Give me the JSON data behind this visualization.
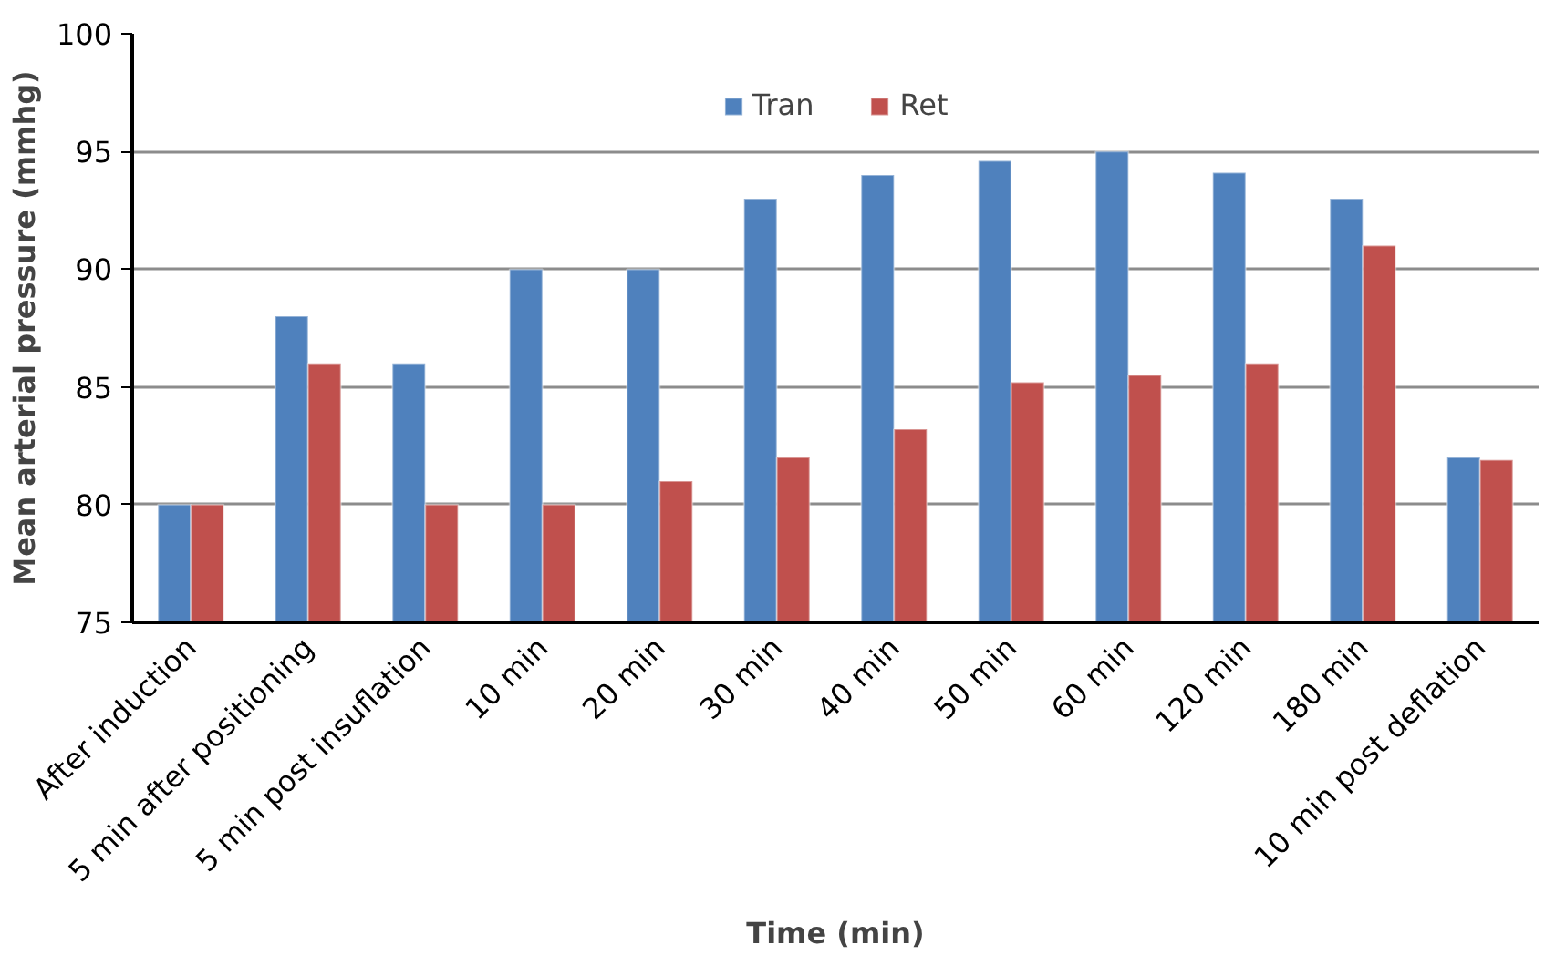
{
  "chart_data": {
    "type": "bar",
    "xlabel": "Time (min)",
    "ylabel": "Mean arterial pressure (mmhg)",
    "categories": [
      "After induction",
      "5 min after positioning",
      "5 min post insuflation",
      "10 min",
      "20 min",
      "30 min",
      "40 min",
      "50 min",
      "60 min",
      "120 min",
      "180 min",
      "10 min post deflation"
    ],
    "series": [
      {
        "name": "Tran",
        "color": "#4f81bd",
        "values": [
          80,
          88,
          86,
          90,
          90,
          93,
          94,
          94.6,
          95,
          94.1,
          93,
          82
        ]
      },
      {
        "name": "Ret",
        "color": "#c0504d",
        "values": [
          80,
          86,
          80,
          80,
          81,
          82,
          83.2,
          85.2,
          85.5,
          86,
          91,
          81.9
        ]
      }
    ],
    "ylim": [
      75,
      100
    ],
    "yticks": [
      75,
      80,
      85,
      90,
      95,
      100
    ],
    "grid": "y",
    "legend": "top"
  }
}
